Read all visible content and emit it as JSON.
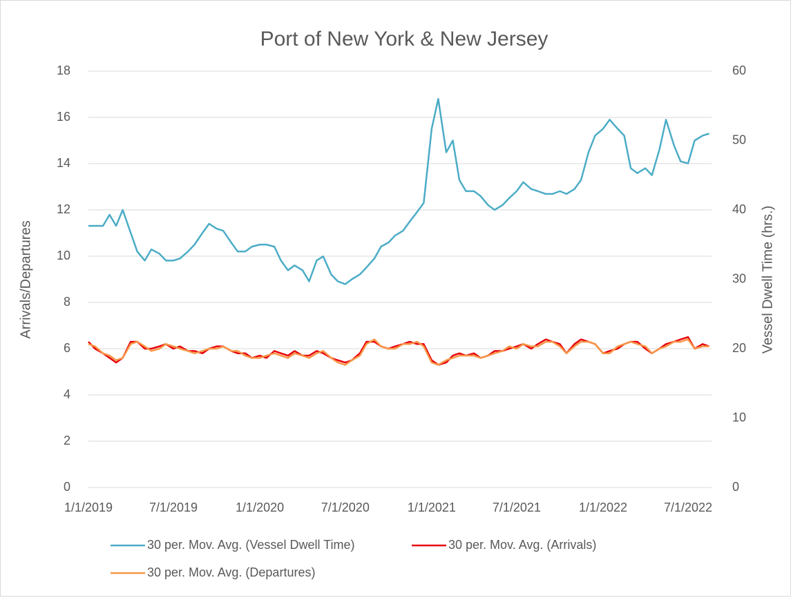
{
  "chart_data": {
    "type": "line",
    "title": "Port of New York & New Jersey",
    "y_label": "Arrivals/Departures",
    "y2_label": "Vessel Dwell Time (hrs.)",
    "x": [
      "2019-01-01",
      "2019-01-15",
      "2019-02-01",
      "2019-02-15",
      "2019-03-01",
      "2019-03-15",
      "2019-04-01",
      "2019-04-15",
      "2019-05-01",
      "2019-05-15",
      "2019-06-01",
      "2019-06-15",
      "2019-07-01",
      "2019-07-15",
      "2019-08-01",
      "2019-08-15",
      "2019-09-01",
      "2019-09-15",
      "2019-10-01",
      "2019-10-15",
      "2019-11-01",
      "2019-11-15",
      "2019-12-01",
      "2019-12-15",
      "2020-01-01",
      "2020-01-15",
      "2020-02-01",
      "2020-02-15",
      "2020-03-01",
      "2020-03-15",
      "2020-04-01",
      "2020-04-15",
      "2020-05-01",
      "2020-05-15",
      "2020-06-01",
      "2020-06-15",
      "2020-07-01",
      "2020-07-15",
      "2020-08-01",
      "2020-08-15",
      "2020-09-01",
      "2020-09-15",
      "2020-10-01",
      "2020-10-15",
      "2020-11-01",
      "2020-11-15",
      "2020-12-01",
      "2020-12-15",
      "2021-01-01",
      "2021-01-15",
      "2021-02-01",
      "2021-02-15",
      "2021-03-01",
      "2021-03-15",
      "2021-04-01",
      "2021-04-15",
      "2021-05-01",
      "2021-05-15",
      "2021-06-01",
      "2021-06-15",
      "2021-07-01",
      "2021-07-15",
      "2021-08-01",
      "2021-08-15",
      "2021-09-01",
      "2021-09-15",
      "2021-10-01",
      "2021-10-15",
      "2021-11-01",
      "2021-11-15",
      "2021-12-01",
      "2021-12-15",
      "2022-01-01",
      "2022-01-15",
      "2022-02-01",
      "2022-02-15",
      "2022-03-01",
      "2022-03-15",
      "2022-04-01",
      "2022-04-15",
      "2022-05-01",
      "2022-05-15",
      "2022-06-01",
      "2022-06-15",
      "2022-07-01",
      "2022-07-15",
      "2022-08-01",
      "2022-08-15"
    ],
    "series": [
      {
        "name": "30 per. Mov. Avg. (Vessel Dwell Time)",
        "color": "#4bacc6",
        "axis": "y2",
        "values": [
          37.7,
          37.7,
          37.7,
          39.3,
          37.7,
          40,
          36.7,
          34,
          32.7,
          34.3,
          33.7,
          32.7,
          32.7,
          33,
          34,
          35,
          36.7,
          38,
          37.3,
          37,
          35.3,
          34,
          34,
          34.7,
          35,
          35,
          34.7,
          32.7,
          31.3,
          32,
          31.3,
          29.7,
          32.7,
          33.3,
          30.7,
          29.7,
          29.3,
          30,
          30.7,
          31.7,
          33,
          34.7,
          35.3,
          36.3,
          37,
          38.3,
          39.7,
          41,
          51.7,
          56,
          48.3,
          50,
          44.3,
          42.7,
          42.7,
          42,
          40.7,
          40,
          40.7,
          41.7,
          42.7,
          44,
          43,
          42.7,
          42.3,
          42.3,
          42.7,
          42.3,
          43,
          44.3,
          48.3,
          50.7,
          51.7,
          53,
          51.7,
          50.7,
          46,
          45.3,
          46,
          45,
          48.7,
          53,
          49.3,
          47,
          46.7,
          50,
          50.7,
          51
        ]
      },
      {
        "name": "30 per. Mov. Avg. (Arrivals)",
        "color": "#e8000b",
        "values": [
          6.3,
          6.0,
          5.8,
          5.6,
          5.4,
          5.6,
          6.3,
          6.3,
          6.0,
          6.0,
          6.1,
          6.2,
          6.0,
          6.1,
          5.9,
          5.9,
          5.8,
          6.0,
          6.1,
          6.1,
          5.9,
          5.8,
          5.8,
          5.6,
          5.7,
          5.6,
          5.9,
          5.8,
          5.7,
          5.9,
          5.7,
          5.7,
          5.9,
          5.8,
          5.6,
          5.5,
          5.4,
          5.5,
          5.8,
          6.3,
          6.3,
          6.1,
          6.0,
          6.1,
          6.2,
          6.3,
          6.2,
          6.2,
          5.5,
          5.3,
          5.4,
          5.7,
          5.8,
          5.7,
          5.8,
          5.6,
          5.7,
          5.9,
          5.9,
          6.0,
          6.1,
          6.2,
          6.0,
          6.2,
          6.4,
          6.3,
          6.2,
          5.8,
          6.2,
          6.4,
          6.3,
          6.2,
          5.8,
          5.9,
          6.0,
          6.2,
          6.3,
          6.3,
          6.0,
          5.8,
          6.0,
          6.2,
          6.3,
          6.4,
          6.5,
          6.0,
          6.2,
          6.1
        ]
      },
      {
        "name": "30 per. Mov. Avg. (Departures)",
        "color": "#f79646",
        "values": [
          6.2,
          6.1,
          5.8,
          5.7,
          5.5,
          5.6,
          6.2,
          6.3,
          6.1,
          5.9,
          6.0,
          6.2,
          6.1,
          6.0,
          5.9,
          5.8,
          5.9,
          6.0,
          6.0,
          6.1,
          5.9,
          5.9,
          5.7,
          5.6,
          5.6,
          5.7,
          5.8,
          5.7,
          5.6,
          5.8,
          5.7,
          5.6,
          5.8,
          5.9,
          5.6,
          5.4,
          5.3,
          5.5,
          5.7,
          6.2,
          6.4,
          6.1,
          6.0,
          6.0,
          6.2,
          6.2,
          6.3,
          6.1,
          5.4,
          5.3,
          5.5,
          5.6,
          5.7,
          5.7,
          5.7,
          5.6,
          5.7,
          5.8,
          5.9,
          6.1,
          6.0,
          6.2,
          6.1,
          6.1,
          6.3,
          6.3,
          6.1,
          5.8,
          6.1,
          6.3,
          6.3,
          6.2,
          5.8,
          5.8,
          6.1,
          6.2,
          6.3,
          6.2,
          6.1,
          5.8,
          6.0,
          6.1,
          6.3,
          6.3,
          6.4,
          6.0,
          6.1,
          6.1
        ]
      }
    ],
    "xlim": [
      "2019-01-01",
      "2022-08-20"
    ],
    "xticks": [
      {
        "value": "2019-01-01",
        "label": "1/1/2019"
      },
      {
        "value": "2019-07-01",
        "label": "7/1/2019"
      },
      {
        "value": "2020-01-01",
        "label": "1/1/2020"
      },
      {
        "value": "2020-07-01",
        "label": "7/1/2020"
      },
      {
        "value": "2021-01-01",
        "label": "1/1/2021"
      },
      {
        "value": "2021-07-01",
        "label": "7/1/2021"
      },
      {
        "value": "2022-01-01",
        "label": "1/1/2022"
      },
      {
        "value": "2022-07-01",
        "label": "7/1/2022"
      }
    ],
    "ylim": [
      0,
      18
    ],
    "yticks": [
      0,
      2,
      4,
      6,
      8,
      10,
      12,
      14,
      16,
      18
    ],
    "y2lim": [
      0,
      60
    ],
    "y2ticks": [
      0,
      10,
      20,
      30,
      40,
      50,
      60
    ],
    "grid": true,
    "legend": "bottom"
  }
}
